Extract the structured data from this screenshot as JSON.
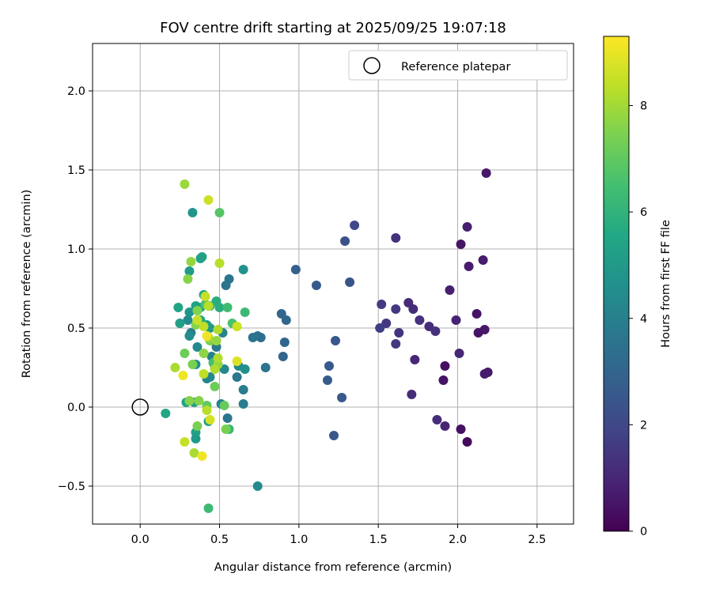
{
  "chart_data": {
    "type": "scatter",
    "title": "FOV centre drift starting at 2025/09/25 19:07:18",
    "xlabel": "Angular distance from reference (arcmin)",
    "ylabel": "Rotation from reference (arcmin)",
    "xlim": [
      -0.3,
      2.73
    ],
    "ylim": [
      -0.74,
      2.3
    ],
    "xticks": [
      0.0,
      0.5,
      1.0,
      1.5,
      2.0,
      2.5
    ],
    "xtick_labels": [
      "0.0",
      "0.5",
      "1.0",
      "1.5",
      "2.0",
      "2.5"
    ],
    "yticks": [
      -0.5,
      0.0,
      0.5,
      1.0,
      1.5,
      2.0
    ],
    "ytick_labels": [
      "−0.5",
      "0.0",
      "0.5",
      "1.0",
      "1.5",
      "2.0"
    ],
    "grid": true,
    "legend": {
      "position": "top-right",
      "entries": [
        "Reference platepar"
      ]
    },
    "reference_point": {
      "x": 0.0,
      "y": 0.0
    },
    "colorbar": {
      "label": "Hours from first FF file",
      "range": [
        0,
        9.3
      ],
      "ticks": [
        0,
        2,
        4,
        6,
        8
      ],
      "tick_labels": [
        "0",
        "2",
        "4",
        "6",
        "8"
      ],
      "colormap": "viridis"
    },
    "series": [
      {
        "values": [
          {
            "x": 2.18,
            "y": 1.48,
            "c": 0.6
          },
          {
            "x": 2.06,
            "y": 1.14,
            "c": 0.8
          },
          {
            "x": 2.02,
            "y": 1.03,
            "c": 0.5
          },
          {
            "x": 2.16,
            "y": 0.93,
            "c": 0.7
          },
          {
            "x": 2.07,
            "y": 0.89,
            "c": 0.7
          },
          {
            "x": 1.95,
            "y": 0.74,
            "c": 0.8
          },
          {
            "x": 2.12,
            "y": 0.59,
            "c": 0.5
          },
          {
            "x": 1.99,
            "y": 0.55,
            "c": 0.9
          },
          {
            "x": 2.17,
            "y": 0.49,
            "c": 0.6
          },
          {
            "x": 2.13,
            "y": 0.47,
            "c": 0.5
          },
          {
            "x": 2.01,
            "y": 0.34,
            "c": 1.0
          },
          {
            "x": 1.92,
            "y": 0.26,
            "c": 0.4
          },
          {
            "x": 2.19,
            "y": 0.22,
            "c": 0.6
          },
          {
            "x": 2.17,
            "y": 0.21,
            "c": 0.7
          },
          {
            "x": 1.91,
            "y": 0.17,
            "c": 0.5
          },
          {
            "x": 1.87,
            "y": -0.08,
            "c": 1.2
          },
          {
            "x": 1.92,
            "y": -0.12,
            "c": 1.0
          },
          {
            "x": 2.02,
            "y": -0.14,
            "c": 0.4
          },
          {
            "x": 2.06,
            "y": -0.22,
            "c": 0.2
          },
          {
            "x": 1.61,
            "y": 1.07,
            "c": 1.3
          },
          {
            "x": 1.69,
            "y": 0.66,
            "c": 1.1
          },
          {
            "x": 1.72,
            "y": 0.62,
            "c": 1.2
          },
          {
            "x": 1.76,
            "y": 0.55,
            "c": 1.3
          },
          {
            "x": 1.82,
            "y": 0.51,
            "c": 1.2
          },
          {
            "x": 1.86,
            "y": 0.48,
            "c": 1.3
          },
          {
            "x": 1.52,
            "y": 0.65,
            "c": 1.6
          },
          {
            "x": 1.61,
            "y": 0.62,
            "c": 1.5
          },
          {
            "x": 1.55,
            "y": 0.53,
            "c": 1.5
          },
          {
            "x": 1.51,
            "y": 0.5,
            "c": 1.7
          },
          {
            "x": 1.63,
            "y": 0.47,
            "c": 1.4
          },
          {
            "x": 1.61,
            "y": 0.4,
            "c": 1.5
          },
          {
            "x": 1.73,
            "y": 0.3,
            "c": 1.0
          },
          {
            "x": 1.71,
            "y": 0.08,
            "c": 1.2
          },
          {
            "x": 1.35,
            "y": 1.15,
            "c": 2.0
          },
          {
            "x": 1.29,
            "y": 1.05,
            "c": 2.3
          },
          {
            "x": 1.32,
            "y": 0.79,
            "c": 2.4
          },
          {
            "x": 1.11,
            "y": 0.77,
            "c": 2.6
          },
          {
            "x": 0.98,
            "y": 0.87,
            "c": 2.8
          },
          {
            "x": 1.23,
            "y": 0.42,
            "c": 2.5
          },
          {
            "x": 1.19,
            "y": 0.26,
            "c": 2.6
          },
          {
            "x": 1.18,
            "y": 0.17,
            "c": 2.7
          },
          {
            "x": 1.27,
            "y": 0.06,
            "c": 2.6
          },
          {
            "x": 1.22,
            "y": -0.18,
            "c": 2.5
          },
          {
            "x": 0.89,
            "y": 0.59,
            "c": 3.0
          },
          {
            "x": 0.92,
            "y": 0.55,
            "c": 3.1
          },
          {
            "x": 0.91,
            "y": 0.41,
            "c": 3.1
          },
          {
            "x": 0.9,
            "y": 0.32,
            "c": 3.0
          },
          {
            "x": 0.79,
            "y": 0.25,
            "c": 3.6
          },
          {
            "x": 0.74,
            "y": 0.45,
            "c": 3.5
          },
          {
            "x": 0.76,
            "y": 0.44,
            "c": 3.4
          },
          {
            "x": 0.71,
            "y": 0.44,
            "c": 3.6
          },
          {
            "x": 0.74,
            "y": -0.5,
            "c": 4.4
          },
          {
            "x": 0.56,
            "y": 0.81,
            "c": 3.7
          },
          {
            "x": 0.54,
            "y": 0.77,
            "c": 3.6
          },
          {
            "x": 0.61,
            "y": 0.19,
            "c": 3.7
          },
          {
            "x": 0.65,
            "y": 0.11,
            "c": 3.9
          },
          {
            "x": 0.65,
            "y": 0.02,
            "c": 3.9
          },
          {
            "x": 0.55,
            "y": -0.07,
            "c": 3.6
          },
          {
            "x": 0.65,
            "y": 0.87,
            "c": 4.7
          },
          {
            "x": 0.62,
            "y": 0.26,
            "c": 4.3
          },
          {
            "x": 0.66,
            "y": 0.24,
            "c": 4.6
          },
          {
            "x": 0.53,
            "y": 0.24,
            "c": 4.3
          },
          {
            "x": 0.52,
            "y": 0.47,
            "c": 4.2
          },
          {
            "x": 0.48,
            "y": 0.38,
            "c": 3.8
          },
          {
            "x": 0.45,
            "y": 0.32,
            "c": 4.0
          },
          {
            "x": 0.47,
            "y": 0.26,
            "c": 4.5
          },
          {
            "x": 0.44,
            "y": 0.19,
            "c": 4.4
          },
          {
            "x": 0.42,
            "y": 0.18,
            "c": 4.2
          },
          {
            "x": 0.51,
            "y": 0.02,
            "c": 4.0
          },
          {
            "x": 0.36,
            "y": 0.38,
            "c": 4.3
          },
          {
            "x": 0.35,
            "y": 0.27,
            "c": 4.6
          },
          {
            "x": 0.32,
            "y": 0.47,
            "c": 4.0
          },
          {
            "x": 0.31,
            "y": 0.45,
            "c": 4.5
          },
          {
            "x": 0.3,
            "y": 0.55,
            "c": 4.4
          },
          {
            "x": 0.31,
            "y": 0.6,
            "c": 4.8
          },
          {
            "x": 0.33,
            "y": 1.23,
            "c": 4.8
          },
          {
            "x": 0.31,
            "y": 0.86,
            "c": 5.0
          },
          {
            "x": 0.39,
            "y": 0.95,
            "c": 5.5
          },
          {
            "x": 0.38,
            "y": 0.94,
            "c": 5.3
          },
          {
            "x": 0.4,
            "y": 0.71,
            "c": 5.5
          },
          {
            "x": 0.48,
            "y": 0.67,
            "c": 5.8
          },
          {
            "x": 0.44,
            "y": 0.64,
            "c": 6.0
          },
          {
            "x": 0.38,
            "y": 0.63,
            "c": 5.5
          },
          {
            "x": 0.35,
            "y": 0.64,
            "c": 5.3
          },
          {
            "x": 0.42,
            "y": 0.52,
            "c": 5.3
          },
          {
            "x": 0.44,
            "y": 0.5,
            "c": 5.0
          },
          {
            "x": 0.38,
            "y": 0.55,
            "c": 5.6
          },
          {
            "x": 0.24,
            "y": 0.63,
            "c": 5.4
          },
          {
            "x": 0.25,
            "y": 0.53,
            "c": 5.2
          },
          {
            "x": 0.29,
            "y": 0.03,
            "c": 5.4
          },
          {
            "x": 0.34,
            "y": 0.03,
            "c": 5.3
          },
          {
            "x": 0.35,
            "y": -0.16,
            "c": 5.3
          },
          {
            "x": 0.35,
            "y": -0.2,
            "c": 5.0
          },
          {
            "x": 0.43,
            "y": -0.09,
            "c": 5.1
          },
          {
            "x": 0.16,
            "y": -0.04,
            "c": 5.5
          },
          {
            "x": 0.43,
            "y": -0.64,
            "c": 6.3
          },
          {
            "x": 0.5,
            "y": 0.63,
            "c": 5.8
          },
          {
            "x": 0.55,
            "y": 0.63,
            "c": 6.4
          },
          {
            "x": 0.58,
            "y": 0.53,
            "c": 6.6
          },
          {
            "x": 0.66,
            "y": 0.6,
            "c": 6.3
          },
          {
            "x": 0.5,
            "y": 1.23,
            "c": 6.8
          },
          {
            "x": 0.56,
            "y": -0.14,
            "c": 6.2
          },
          {
            "x": 0.41,
            "y": 0.65,
            "c": 6.6
          },
          {
            "x": 0.46,
            "y": 0.28,
            "c": 6.5
          },
          {
            "x": 0.47,
            "y": 0.13,
            "c": 7.2
          },
          {
            "x": 0.42,
            "y": 0.01,
            "c": 7.0
          },
          {
            "x": 0.53,
            "y": 0.01,
            "c": 7.1
          },
          {
            "x": 0.54,
            "y": -0.14,
            "c": 7.4
          },
          {
            "x": 0.37,
            "y": 0.04,
            "c": 7.6
          },
          {
            "x": 0.31,
            "y": 0.04,
            "c": 7.6
          },
          {
            "x": 0.36,
            "y": -0.12,
            "c": 7.4
          },
          {
            "x": 0.28,
            "y": 0.34,
            "c": 7.2
          },
          {
            "x": 0.33,
            "y": 0.27,
            "c": 7.4
          },
          {
            "x": 0.36,
            "y": 0.61,
            "c": 7.5
          },
          {
            "x": 0.35,
            "y": 0.52,
            "c": 7.6
          },
          {
            "x": 0.44,
            "y": 0.42,
            "c": 7.4
          },
          {
            "x": 0.48,
            "y": 0.42,
            "c": 7.8
          },
          {
            "x": 0.4,
            "y": 0.34,
            "c": 7.7
          },
          {
            "x": 0.43,
            "y": 0.44,
            "c": 8.0
          },
          {
            "x": 0.49,
            "y": 0.27,
            "c": 7.8
          },
          {
            "x": 0.28,
            "y": 1.41,
            "c": 7.9
          },
          {
            "x": 0.32,
            "y": 0.92,
            "c": 7.8
          },
          {
            "x": 0.3,
            "y": 0.81,
            "c": 7.6
          },
          {
            "x": 0.5,
            "y": 0.91,
            "c": 8.3
          },
          {
            "x": 0.43,
            "y": 1.31,
            "c": 8.6
          },
          {
            "x": 0.41,
            "y": 0.7,
            "c": 8.5
          },
          {
            "x": 0.43,
            "y": 0.64,
            "c": 8.3
          },
          {
            "x": 0.36,
            "y": 0.55,
            "c": 8.5
          },
          {
            "x": 0.4,
            "y": 0.51,
            "c": 8.4
          },
          {
            "x": 0.49,
            "y": 0.49,
            "c": 8.2
          },
          {
            "x": 0.49,
            "y": 0.31,
            "c": 8.2
          },
          {
            "x": 0.61,
            "y": 0.51,
            "c": 8.6
          },
          {
            "x": 0.61,
            "y": 0.29,
            "c": 8.8
          },
          {
            "x": 0.47,
            "y": 0.24,
            "c": 8.2
          },
          {
            "x": 0.4,
            "y": 0.21,
            "c": 8.4
          },
          {
            "x": 0.22,
            "y": 0.25,
            "c": 8.1
          },
          {
            "x": 0.42,
            "y": -0.02,
            "c": 8.3
          },
          {
            "x": 0.28,
            "y": -0.22,
            "c": 8.5
          },
          {
            "x": 0.34,
            "y": -0.29,
            "c": 8.1
          },
          {
            "x": 0.44,
            "y": -0.08,
            "c": 8.7
          },
          {
            "x": 0.42,
            "y": 0.45,
            "c": 9.1
          },
          {
            "x": 0.27,
            "y": 0.2,
            "c": 9.1
          },
          {
            "x": 0.39,
            "y": -0.31,
            "c": 9.1
          }
        ]
      }
    ]
  }
}
